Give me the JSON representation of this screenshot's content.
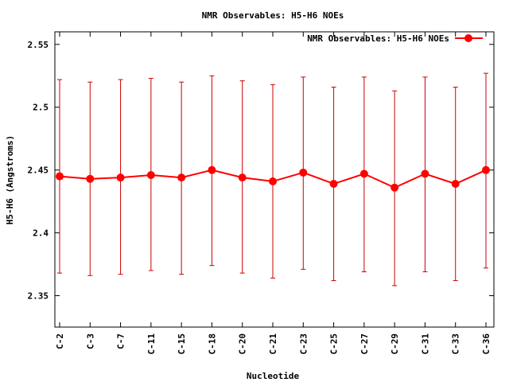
{
  "chart_data": {
    "type": "line",
    "title": "NMR Observables: H5-H6 NOEs",
    "xlabel": "Nucleotide",
    "ylabel": "H5-H6 (Angstroms)",
    "categories": [
      "C-2",
      "C-3",
      "C-7",
      "C-11",
      "C-15",
      "C-18",
      "C-20",
      "C-21",
      "C-23",
      "C-25",
      "C-27",
      "C-29",
      "C-31",
      "C-33",
      "C-36"
    ],
    "yticks": [
      "2.35",
      "2.4",
      "2.45",
      "2.5",
      "2.55"
    ],
    "ylim": [
      2.325,
      2.56
    ],
    "grid": false,
    "legend_position": "top-right",
    "series": [
      {
        "name": "NMR Observables: H5-H6 NOEs",
        "color": "#ff0000",
        "error_color": "#cc0000",
        "marker": "circle",
        "values": [
          2.445,
          2.443,
          2.444,
          2.446,
          2.444,
          2.45,
          2.444,
          2.441,
          2.448,
          2.439,
          2.447,
          2.436,
          2.447,
          2.439,
          2.45
        ],
        "error_low": [
          2.368,
          2.366,
          2.367,
          2.37,
          2.367,
          2.374,
          2.368,
          2.364,
          2.371,
          2.362,
          2.369,
          2.358,
          2.369,
          2.362,
          2.372
        ],
        "error_high": [
          2.522,
          2.52,
          2.522,
          2.523,
          2.52,
          2.525,
          2.521,
          2.518,
          2.524,
          2.516,
          2.524,
          2.513,
          2.524,
          2.516,
          2.527
        ]
      }
    ]
  }
}
